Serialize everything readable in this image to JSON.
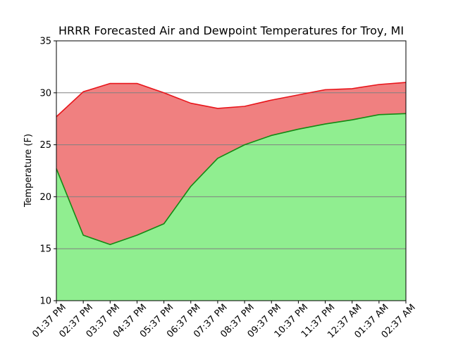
{
  "chart_data": {
    "type": "area",
    "title": "HRRR Forecasted Air and Dewpoint Temperatures for Troy, MI",
    "xlabel": "",
    "ylabel": "Temperature (F)",
    "ylim": [
      10,
      35
    ],
    "yticks": [
      10,
      15,
      20,
      25,
      30,
      35
    ],
    "categories": [
      "01:37 PM",
      "02:37 PM",
      "03:37 PM",
      "04:37 PM",
      "05:37 PM",
      "06:37 PM",
      "07:37 PM",
      "08:37 PM",
      "09:37 PM",
      "10:37 PM",
      "11:37 PM",
      "12:37 AM",
      "01:37 AM",
      "02:37 AM"
    ],
    "grid": "horizontal",
    "series": [
      {
        "values": [
          27.7,
          30.1,
          30.9,
          30.9,
          30.0,
          29.0,
          28.5,
          28.7,
          29.3,
          29.8,
          30.3,
          30.4,
          30.8,
          31.0
        ],
        "line_color": "#e8141a",
        "fill_color": "#f08080"
      },
      {
        "values": [
          22.7,
          16.3,
          15.4,
          16.3,
          17.4,
          21.0,
          23.7,
          25.0,
          25.9,
          26.5,
          27.0,
          27.4,
          27.9,
          28.0
        ],
        "line_color": "#138a13",
        "fill_color": "#90ee90"
      }
    ]
  }
}
